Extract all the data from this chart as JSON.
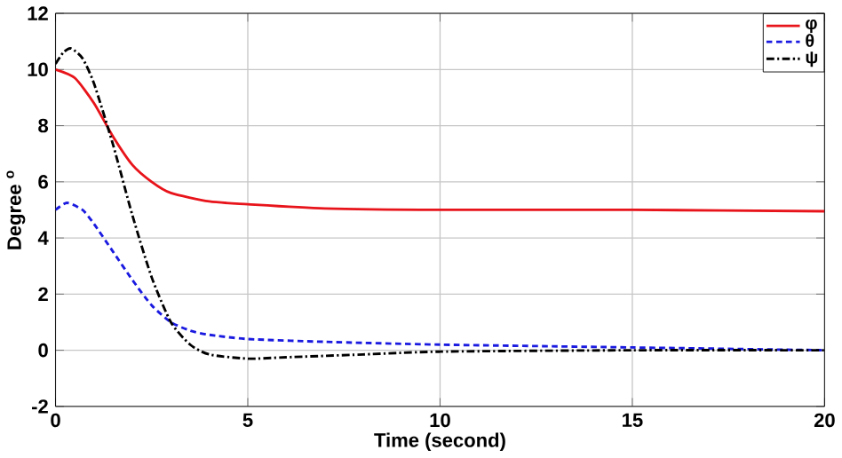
{
  "chart_data": {
    "type": "line",
    "xlabel": "Time (second)",
    "ylabel": "Degree $^{o}$",
    "xlim": [
      0,
      20
    ],
    "ylim": [
      -2,
      12
    ],
    "xticks": [
      0,
      5,
      10,
      15,
      20
    ],
    "yticks": [
      -2,
      0,
      2,
      4,
      6,
      8,
      10,
      12
    ],
    "grid": true,
    "legend": "top right",
    "marker": "none",
    "series": [
      {
        "name": "φ",
        "color": "#e8141b",
        "line_style": "solid",
        "x": [
          0,
          0.5,
          1,
          1.5,
          2,
          2.5,
          3,
          4,
          5,
          7,
          10,
          15,
          20
        ],
        "values": [
          10,
          9.7,
          8.8,
          7.6,
          6.6,
          6.0,
          5.6,
          5.3,
          5.2,
          5.05,
          5.0,
          5.0,
          4.95
        ]
      },
      {
        "name": "θ",
        "color": "#1a1ae0",
        "line_style": "dashed",
        "x": [
          0,
          0.3,
          0.7,
          1,
          1.5,
          2,
          2.5,
          3,
          3.5,
          4,
          5,
          7,
          10,
          15,
          20
        ],
        "values": [
          5.0,
          5.25,
          5.0,
          4.5,
          3.5,
          2.5,
          1.6,
          1.0,
          0.7,
          0.55,
          0.4,
          0.3,
          0.2,
          0.1,
          0.0
        ]
      },
      {
        "name": "ψ",
        "color": "#000000",
        "line_style": "dashdot",
        "x": [
          0,
          0.2,
          0.4,
          0.7,
          1,
          1.5,
          2,
          2.5,
          3,
          3.5,
          4,
          5,
          6,
          8,
          10,
          15,
          20
        ],
        "values": [
          10.2,
          10.6,
          10.75,
          10.4,
          9.5,
          7.3,
          4.8,
          2.6,
          1.0,
          0.2,
          -0.15,
          -0.3,
          -0.25,
          -0.15,
          -0.05,
          0,
          0
        ]
      }
    ]
  }
}
